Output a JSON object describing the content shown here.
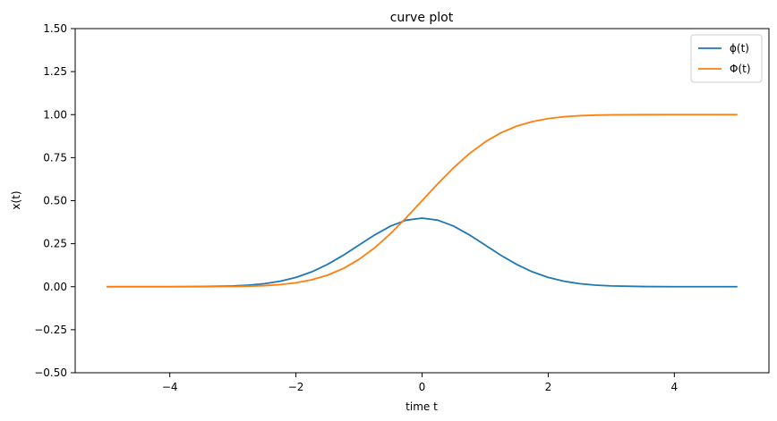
{
  "chart_data": {
    "type": "line",
    "title": "curve plot",
    "xlabel": "time t",
    "ylabel": "x(t)",
    "xlim": [
      -5.5,
      5.5
    ],
    "ylim": [
      -0.5,
      1.5
    ],
    "xticks": [
      -4,
      -2,
      0,
      2,
      4
    ],
    "xtick_labels": [
      "−4",
      "−2",
      "0",
      "2",
      "4"
    ],
    "yticks": [
      -0.5,
      -0.25,
      0.0,
      0.25,
      0.5,
      0.75,
      1.0,
      1.25,
      1.5
    ],
    "ytick_labels": [
      "−0.50",
      "−0.25",
      "0.00",
      "0.25",
      "0.50",
      "0.75",
      "1.00",
      "1.25",
      "1.50"
    ],
    "grid": false,
    "legend_position": "top-right",
    "series": [
      {
        "name": "ϕ(t)",
        "color": "#1f77b4",
        "x": [
          -5,
          -4.5,
          -4,
          -3.5,
          -3,
          -2.75,
          -2.5,
          -2.25,
          -2,
          -1.75,
          -1.5,
          -1.25,
          -1,
          -0.75,
          -0.5,
          -0.25,
          0,
          0.25,
          0.5,
          0.75,
          1,
          1.25,
          1.5,
          1.75,
          2,
          2.25,
          2.5,
          2.75,
          3,
          3.5,
          4,
          4.5,
          5
        ],
        "values": [
          0.0,
          0.0,
          0.0001,
          0.0009,
          0.0044,
          0.0091,
          0.0175,
          0.0317,
          0.054,
          0.0863,
          0.1295,
          0.1826,
          0.242,
          0.3011,
          0.3521,
          0.3867,
          0.3989,
          0.3867,
          0.3521,
          0.3011,
          0.242,
          0.1826,
          0.1295,
          0.0863,
          0.054,
          0.0317,
          0.0175,
          0.0091,
          0.0044,
          0.0009,
          0.0001,
          0.0,
          0.0
        ]
      },
      {
        "name": "Φ(t)",
        "color": "#ff7f0e",
        "x": [
          -5,
          -4.5,
          -4,
          -3.5,
          -3,
          -2.75,
          -2.5,
          -2.25,
          -2,
          -1.75,
          -1.5,
          -1.25,
          -1,
          -0.75,
          -0.5,
          -0.25,
          0,
          0.25,
          0.5,
          0.75,
          1,
          1.25,
          1.5,
          1.75,
          2,
          2.25,
          2.5,
          2.75,
          3,
          3.5,
          4,
          4.5,
          5
        ],
        "values": [
          0.0,
          0.0,
          0.0,
          0.0002,
          0.0013,
          0.003,
          0.0062,
          0.0122,
          0.0228,
          0.0401,
          0.0668,
          0.1056,
          0.1587,
          0.2266,
          0.3085,
          0.4013,
          0.5,
          0.5987,
          0.6915,
          0.7734,
          0.8413,
          0.8944,
          0.9332,
          0.9599,
          0.9772,
          0.9878,
          0.9938,
          0.997,
          0.9987,
          0.9998,
          1.0,
          1.0,
          1.0
        ]
      }
    ]
  }
}
